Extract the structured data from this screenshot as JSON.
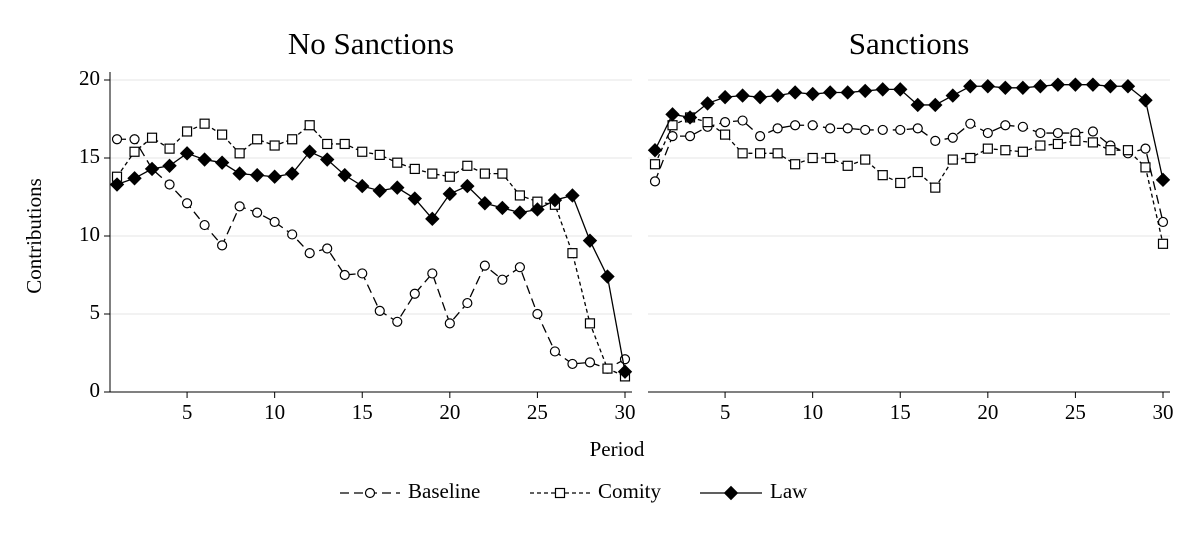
{
  "chart_data": [
    {
      "type": "line",
      "title": "No Sanctions",
      "ylabel": "Contributions",
      "legend": "bottom",
      "x": [
        1,
        2,
        3,
        4,
        5,
        6,
        7,
        8,
        9,
        10,
        11,
        12,
        13,
        14,
        15,
        16,
        17,
        18,
        19,
        20,
        21,
        22,
        23,
        24,
        25,
        26,
        27,
        28,
        29,
        30
      ],
      "xlim": [
        0.6,
        30.4
      ],
      "ylim": [
        0,
        20
      ],
      "xticks": [
        5,
        10,
        15,
        20,
        25,
        30
      ],
      "yticks": [
        0,
        5,
        10,
        15,
        20
      ],
      "grid": true,
      "series": [
        {
          "name": "Baseline",
          "color": "#000000",
          "marker": "circle",
          "dash": "9,5",
          "values": [
            16.2,
            16.2,
            14.3,
            13.3,
            12.1,
            10.7,
            9.4,
            11.9,
            11.5,
            10.9,
            10.1,
            8.9,
            9.2,
            7.5,
            7.6,
            5.2,
            4.5,
            6.3,
            7.6,
            4.4,
            5.7,
            8.1,
            7.2,
            8.0,
            5.0,
            2.6,
            1.8,
            1.9,
            1.5,
            2.1
          ]
        },
        {
          "name": "Comity",
          "color": "#000000",
          "marker": "square",
          "dash": "4,3",
          "values": [
            13.8,
            15.4,
            16.3,
            15.6,
            16.7,
            17.2,
            16.5,
            15.3,
            16.2,
            15.8,
            16.2,
            17.1,
            15.9,
            15.9,
            15.4,
            15.2,
            14.7,
            14.3,
            14.0,
            13.8,
            14.5,
            14.0,
            14.0,
            12.6,
            12.2,
            12.0,
            8.9,
            4.4,
            1.5,
            1.0
          ]
        },
        {
          "name": "Law",
          "color": "#000000",
          "marker": "diamond",
          "dash": "none",
          "values": [
            13.3,
            13.7,
            14.3,
            14.5,
            15.3,
            14.9,
            14.7,
            14.0,
            13.9,
            13.8,
            14.0,
            15.4,
            14.9,
            13.9,
            13.2,
            12.9,
            13.1,
            12.4,
            11.1,
            12.7,
            13.2,
            12.1,
            11.8,
            11.5,
            11.7,
            12.3,
            12.6,
            9.7,
            7.4,
            1.3
          ]
        }
      ]
    },
    {
      "type": "line",
      "title": "Sanctions",
      "x": [
        1,
        2,
        3,
        4,
        5,
        6,
        7,
        8,
        9,
        10,
        11,
        12,
        13,
        14,
        15,
        16,
        17,
        18,
        19,
        20,
        21,
        22,
        23,
        24,
        25,
        26,
        27,
        28,
        29,
        30
      ],
      "xlim": [
        0.6,
        30.4
      ],
      "ylim": [
        0,
        20
      ],
      "xticks": [
        5,
        10,
        15,
        20,
        25,
        30
      ],
      "yticks": [
        0,
        5,
        10,
        15,
        20
      ],
      "grid": true,
      "series": [
        {
          "color": "#000000",
          "marker": "circle",
          "dash": "9,5",
          "values": [
            13.5,
            16.4,
            16.4,
            17.0,
            17.3,
            17.4,
            16.4,
            16.9,
            17.1,
            17.1,
            16.9,
            16.9,
            16.8,
            16.8,
            16.8,
            16.9,
            16.1,
            16.3,
            17.2,
            16.6,
            17.1,
            17.0,
            16.6,
            16.6,
            16.6,
            16.7,
            15.8,
            15.3,
            15.6,
            10.9
          ]
        },
        {
          "color": "#000000",
          "marker": "square",
          "dash": "4,3",
          "values": [
            14.6,
            17.1,
            17.6,
            17.3,
            16.5,
            15.3,
            15.3,
            15.3,
            14.6,
            15.0,
            15.0,
            14.5,
            14.9,
            13.9,
            13.4,
            14.1,
            13.1,
            14.9,
            15.0,
            15.6,
            15.5,
            15.4,
            15.8,
            15.9,
            16.1,
            16.0,
            15.5,
            15.5,
            14.4,
            9.5
          ]
        },
        {
          "color": "#000000",
          "marker": "diamond",
          "dash": "none",
          "values": [
            15.5,
            17.8,
            17.6,
            18.5,
            18.9,
            19.0,
            18.9,
            19.0,
            19.2,
            19.1,
            19.2,
            19.2,
            19.3,
            19.4,
            19.4,
            18.4,
            18.4,
            19.0,
            19.6,
            19.6,
            19.5,
            19.5,
            19.6,
            19.7,
            19.7,
            19.7,
            19.6,
            19.6,
            18.7,
            13.6
          ]
        }
      ]
    }
  ],
  "xlabel": "Period"
}
